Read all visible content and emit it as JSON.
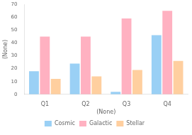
{
  "chart_data": {
    "type": "bar",
    "xlabel": "(None)",
    "ylabel": "(None)",
    "categories": [
      "Q1",
      "Q2",
      "Q3",
      "Q4"
    ],
    "series": [
      {
        "name": "Cosmic",
        "values": [
          18,
          24,
          2,
          46
        ]
      },
      {
        "name": "Galactic",
        "values": [
          45,
          45,
          59,
          65
        ]
      },
      {
        "name": "Stellar",
        "values": [
          12,
          14,
          19,
          26
        ]
      }
    ],
    "ylim": [
      0,
      70
    ],
    "yticks": [
      0,
      10,
      20,
      30,
      40,
      50,
      60,
      70
    ],
    "grid": false,
    "legend": "bottom"
  }
}
